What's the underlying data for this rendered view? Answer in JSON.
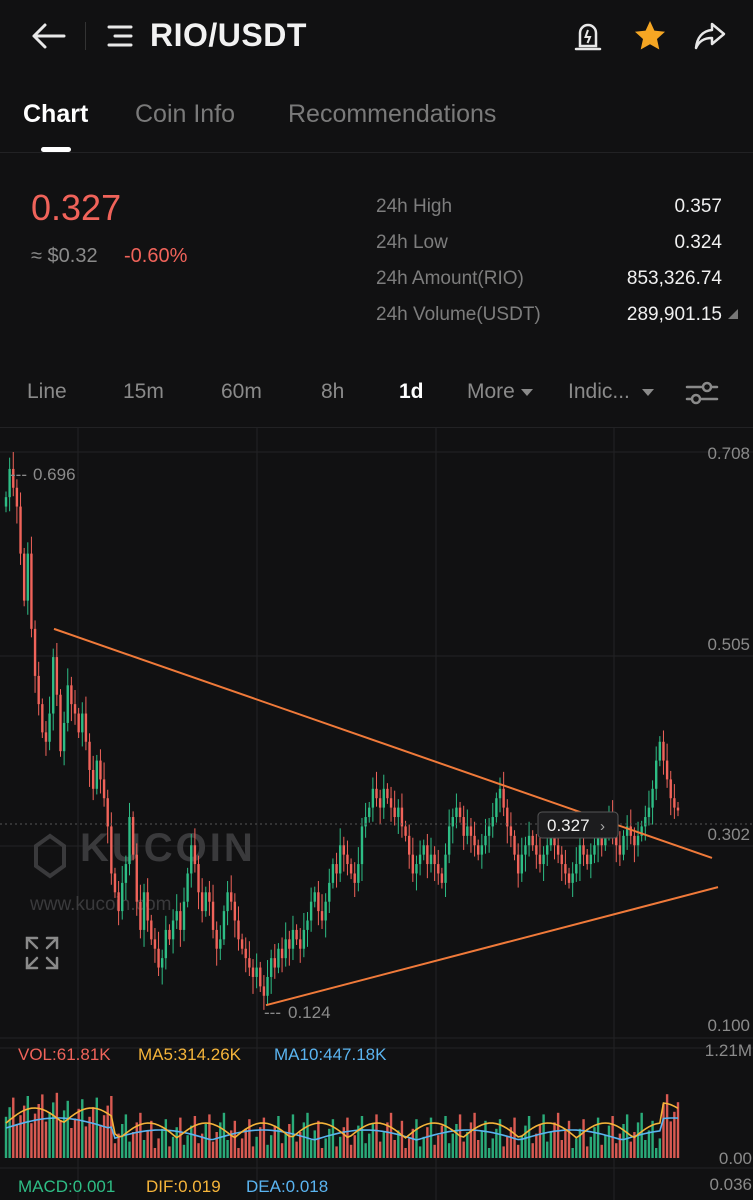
{
  "header": {
    "title": "RIO/USDT",
    "back_icon": "arrow-left-icon",
    "menu_icon": "list-menu-icon",
    "alert_icon": "price-alert-icon",
    "favorite_icon": "star-icon",
    "share_icon": "share-icon",
    "favorite_color": "#f5a623"
  },
  "tabs": [
    {
      "label": "Chart",
      "active": true
    },
    {
      "label": "Coin Info",
      "active": false
    },
    {
      "label": "Recommendations",
      "active": false
    }
  ],
  "price": {
    "last": "0.327",
    "usd": "≈ $0.32",
    "change": "-0.60%",
    "color_down": "#f0635a"
  },
  "stats": [
    {
      "label": "24h High",
      "value": "0.357"
    },
    {
      "label": "24h Low",
      "value": "0.324"
    },
    {
      "label": "24h Amount(RIO)",
      "value": "853,326.74"
    },
    {
      "label": "24h Volume(USDT)",
      "value": "289,901.15"
    }
  ],
  "intervals": [
    {
      "label": "Line",
      "active": false
    },
    {
      "label": "15m",
      "active": false
    },
    {
      "label": "60m",
      "active": false
    },
    {
      "label": "8h",
      "active": false
    },
    {
      "label": "1d",
      "active": true
    },
    {
      "label": "More",
      "active": false,
      "dropdown": true
    },
    {
      "label": "Indic...",
      "active": false,
      "dropdown": true
    }
  ],
  "settings_icon": "sliders-icon",
  "chart": {
    "y_labels": [
      "0.708",
      "0.505",
      "0.302",
      "0.100"
    ],
    "high_marker": "0.696",
    "low_marker": "0.124",
    "current_price_tag": "0.327",
    "watermark": "KUCOIN",
    "watermark_url": "www.kucoin.com",
    "expand_icon": "fullscreen-icon",
    "volume_labels": {
      "top": "1.21M",
      "bottom": "0.00"
    },
    "macd_label": "0.036",
    "vol_legend": {
      "vol": "VOL:61.81K",
      "ma5": "MA5:314.26K",
      "ma10": "MA10:447.18K"
    },
    "macd_legend": {
      "macd": "MACD:0.001",
      "dif": "DIF:0.019",
      "dea": "DEA:0.018"
    },
    "colors": {
      "up": "#2ebd85",
      "down": "#f0635a",
      "trendline": "#f07a3a",
      "ma5": "#f5b43a",
      "ma10": "#5ab4f0"
    }
  },
  "chart_data": {
    "type": "candlestick",
    "interval": "1d",
    "y_range": [
      0.1,
      0.708
    ],
    "trendlines": [
      {
        "name": "upper",
        "from_price": 0.52,
        "to_price": 0.302
      },
      {
        "name": "lower",
        "from_price": 0.12,
        "to_price": 0.288
      }
    ],
    "close": [
      0.66,
      0.69,
      0.67,
      0.65,
      0.6,
      0.55,
      0.6,
      0.52,
      0.47,
      0.44,
      0.41,
      0.4,
      0.43,
      0.49,
      0.45,
      0.39,
      0.42,
      0.46,
      0.44,
      0.43,
      0.41,
      0.43,
      0.4,
      0.37,
      0.35,
      0.38,
      0.36,
      0.34,
      0.31,
      0.26,
      0.24,
      0.22,
      0.25,
      0.27,
      0.32,
      0.28,
      0.23,
      0.2,
      0.24,
      0.21,
      0.19,
      0.18,
      0.16,
      0.17,
      0.2,
      0.19,
      0.21,
      0.22,
      0.2,
      0.23,
      0.26,
      0.29,
      0.27,
      0.24,
      0.22,
      0.24,
      0.23,
      0.2,
      0.18,
      0.19,
      0.22,
      0.24,
      0.23,
      0.21,
      0.19,
      0.18,
      0.17,
      0.16,
      0.15,
      0.16,
      0.14,
      0.13,
      0.15,
      0.17,
      0.16,
      0.18,
      0.17,
      0.19,
      0.18,
      0.2,
      0.19,
      0.18,
      0.2,
      0.21,
      0.23,
      0.24,
      0.22,
      0.21,
      0.23,
      0.25,
      0.27,
      0.26,
      0.29,
      0.28,
      0.27,
      0.26,
      0.25,
      0.27,
      0.31,
      0.32,
      0.33,
      0.35,
      0.34,
      0.33,
      0.35,
      0.34,
      0.33,
      0.32,
      0.33,
      0.31,
      0.3,
      0.28,
      0.26,
      0.27,
      0.28,
      0.29,
      0.27,
      0.28,
      0.27,
      0.26,
      0.25,
      0.28,
      0.31,
      0.32,
      0.33,
      0.32,
      0.3,
      0.31,
      0.3,
      0.29,
      0.28,
      0.29,
      0.3,
      0.31,
      0.32,
      0.34,
      0.35,
      0.33,
      0.31,
      0.3,
      0.28,
      0.26,
      0.28,
      0.29,
      0.3,
      0.29,
      0.28,
      0.27,
      0.28,
      0.29,
      0.3,
      0.29,
      0.28,
      0.27,
      0.26,
      0.25,
      0.26,
      0.27,
      0.29,
      0.28,
      0.27,
      0.28,
      0.29,
      0.3,
      0.29,
      0.31,
      0.32,
      0.3,
      0.29,
      0.28,
      0.3,
      0.31,
      0.3,
      0.29,
      0.3,
      0.31,
      0.32,
      0.33,
      0.35,
      0.38,
      0.4,
      0.38,
      0.36,
      0.34,
      0.33,
      0.327
    ]
  }
}
